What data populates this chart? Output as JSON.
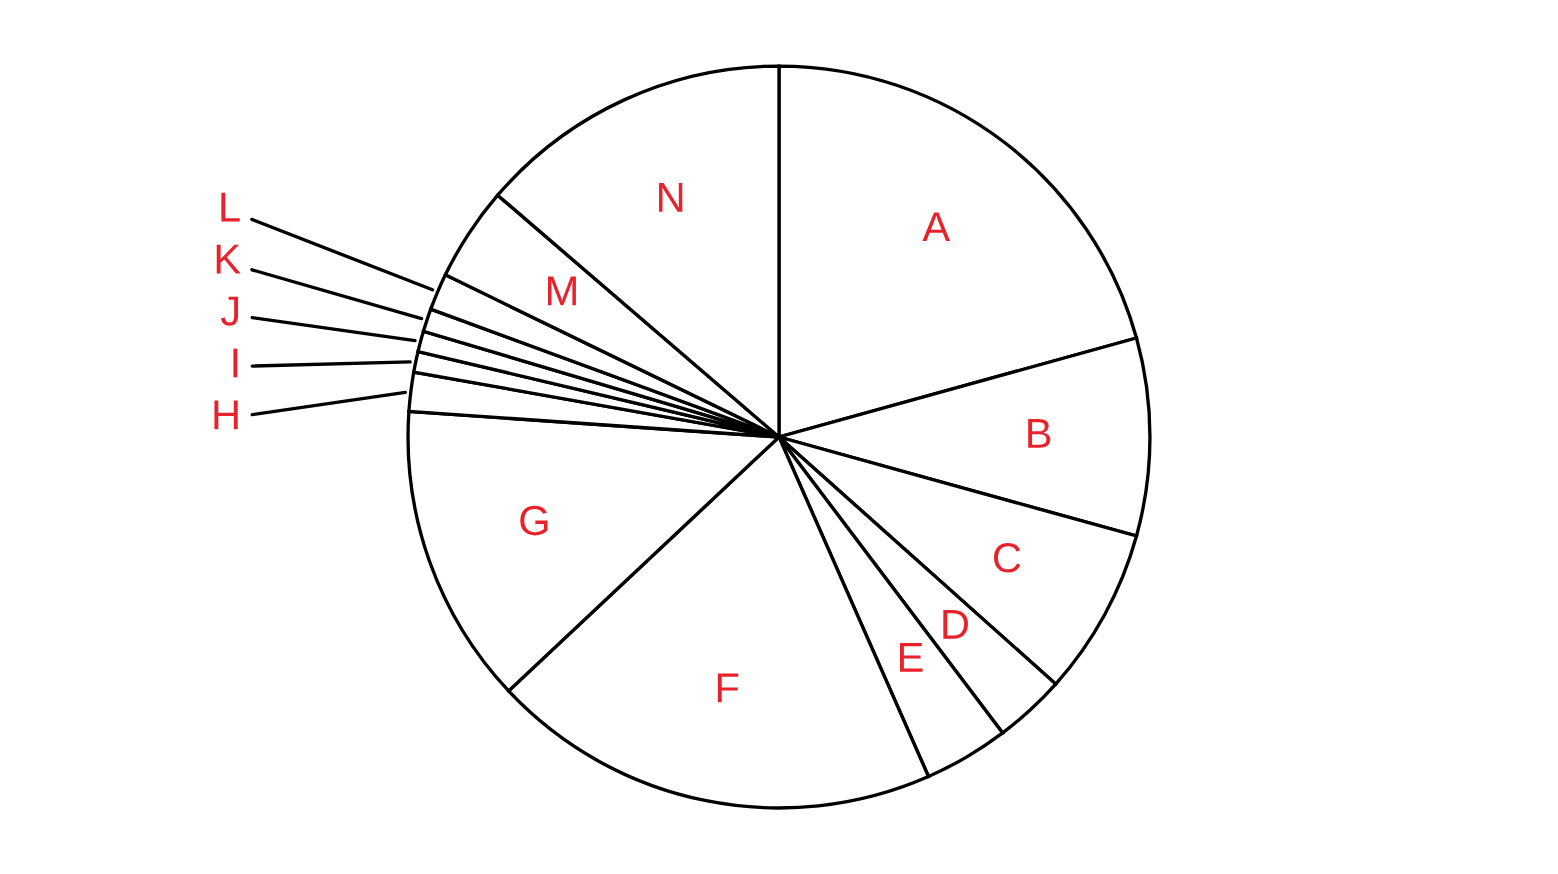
{
  "chart_data": {
    "type": "pie",
    "categories": [
      "A",
      "B",
      "C",
      "D",
      "E",
      "F",
      "G",
      "H",
      "I",
      "J",
      "K",
      "L",
      "M",
      "N"
    ],
    "values": [
      20.7,
      8.6,
      7.3,
      3.1,
      3.7,
      19.6,
      13.1,
      1.7,
      0.9,
      0.9,
      1.0,
      1.6,
      4.1,
      13.7
    ],
    "colors": [
      "#ffffff",
      "#ffffff",
      "#ffffff",
      "#ffffff",
      "#ffffff",
      "#ffffff",
      "#ffffff",
      "#ffffff",
      "#ffffff",
      "#ffffff",
      "#ffffff",
      "#ffffff",
      "#ffffff",
      "#ffffff"
    ]
  }
}
